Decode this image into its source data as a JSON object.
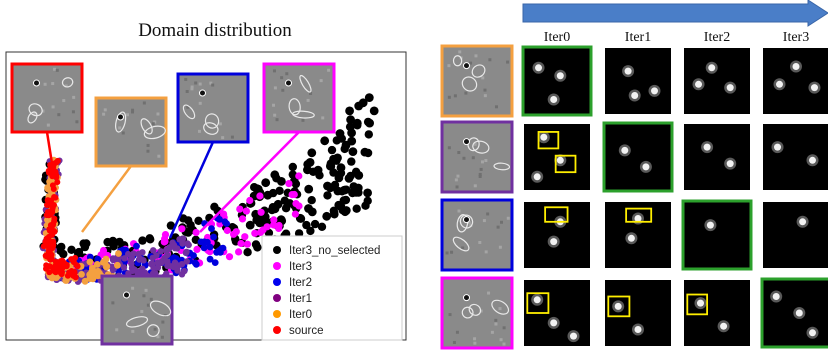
{
  "left_title": "Domain distribution",
  "legend": [
    {
      "label": "Iter3_no_selected",
      "color": "#000000"
    },
    {
      "label": "Iter3",
      "color": "#ff00ff"
    },
    {
      "label": "Iter2",
      "color": "#0000ee"
    },
    {
      "label": "Iter1",
      "color": "#800080"
    },
    {
      "label": "Iter0",
      "color": "#ff9900"
    },
    {
      "label": "source",
      "color": "#ff0000"
    }
  ],
  "iter_headers": [
    "Iter0",
    "Iter1",
    "Iter2",
    "Iter3"
  ],
  "colors": {
    "source": "#ff0000",
    "iter0": "#f4a040",
    "iter1": "#7030a0",
    "iter2": "#0000dd",
    "iter3": "#ff00ff",
    "selected": "#2ca02c",
    "highlight": "#ffee00",
    "arrow": "#4a7ec8"
  },
  "row_border_colors": [
    "#f4a040",
    "#7030a0",
    "#0000dd",
    "#ff00ff"
  ],
  "selected_iteration_per_row": [
    0,
    1,
    2,
    3
  ]
}
